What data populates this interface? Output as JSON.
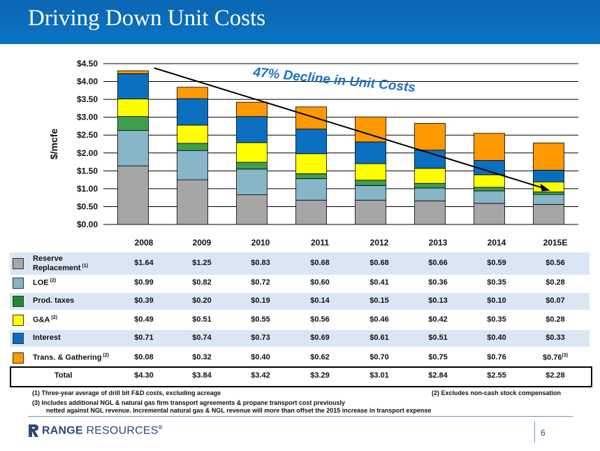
{
  "header": {
    "title": "Driving Down Unit Costs"
  },
  "chart_data": {
    "type": "bar",
    "stacked": true,
    "categories": [
      "2008",
      "2009",
      "2010",
      "2011",
      "2012",
      "2013",
      "2014",
      "2015E"
    ],
    "ylabel": "$/mcfe",
    "ylim": [
      0,
      4.5
    ],
    "yticks": [
      "$0.00",
      "$0.50",
      "$1.00",
      "$1.50",
      "$2.00",
      "$2.50",
      "$3.00",
      "$3.50",
      "$4.00",
      "$4.50"
    ],
    "grid": true,
    "series": [
      {
        "name": "Reserve Replacement",
        "color": "#a6a6a6",
        "values": [
          1.64,
          1.25,
          0.83,
          0.68,
          0.68,
          0.66,
          0.59,
          0.56
        ]
      },
      {
        "name": "LOE",
        "color": "#86b6c8",
        "values": [
          0.99,
          0.82,
          0.72,
          0.6,
          0.41,
          0.36,
          0.35,
          0.28
        ]
      },
      {
        "name": "Prod. taxes",
        "color": "#3e9e4d",
        "values": [
          0.39,
          0.2,
          0.19,
          0.14,
          0.15,
          0.13,
          0.1,
          0.07
        ]
      },
      {
        "name": "G&A",
        "color": "#ffff00",
        "values": [
          0.49,
          0.51,
          0.55,
          0.56,
          0.46,
          0.42,
          0.35,
          0.28
        ]
      },
      {
        "name": "Interest",
        "color": "#0b6fc1",
        "values": [
          0.71,
          0.74,
          0.73,
          0.69,
          0.61,
          0.51,
          0.4,
          0.33
        ]
      },
      {
        "name": "Trans. & Gathering",
        "color": "#ff9900",
        "values": [
          0.08,
          0.32,
          0.4,
          0.62,
          0.7,
          0.75,
          0.76,
          0.76
        ]
      }
    ],
    "totals": [
      4.3,
      3.84,
      3.42,
      3.29,
      3.01,
      2.84,
      2.55,
      2.28
    ],
    "annotation": "47% Decline in Unit Costs"
  },
  "table": {
    "years": [
      "2008",
      "2009",
      "2010",
      "2011",
      "2012",
      "2013",
      "2014",
      "2015E"
    ],
    "rows": [
      {
        "label": "Reserve Replacement",
        "note": "(1)",
        "color": "#a6a6a6",
        "values": [
          "$1.64",
          "$1.25",
          "$0.83",
          "$0.68",
          "$0.68",
          "$0.66",
          "$0.59",
          "$0.56"
        ]
      },
      {
        "label": "LOE",
        "note": "(2)",
        "color": "#86b6c8",
        "values": [
          "$0.99",
          "$0.82",
          "$0.72",
          "$0.60",
          "$0.41",
          "$0.36",
          "$0.35",
          "$0.28"
        ]
      },
      {
        "label": "Prod. taxes",
        "note": "",
        "color": "#1f8a2e",
        "values": [
          "$0.39",
          "$0.20",
          "$0.19",
          "$0.14",
          "$0.15",
          "$0.13",
          "$0.10",
          "$0.07"
        ]
      },
      {
        "label": "G&A",
        "note": "(2)",
        "color": "#ffff00",
        "values": [
          "$0.49",
          "$0.51",
          "$0.55",
          "$0.56",
          "$0.46",
          "$0.42",
          "$0.35",
          "$0.28"
        ]
      },
      {
        "label": "Interest",
        "note": "",
        "color": "#0b6fc1",
        "values": [
          "$0.71",
          "$0.74",
          "$0.73",
          "$0.69",
          "$0.61",
          "$0.51",
          "$0.40",
          "$0.33"
        ]
      },
      {
        "label": "Trans. & Gathering",
        "note": "(2)",
        "color": "#ff9900",
        "values": [
          "$0.08",
          "$0.32",
          "$0.40",
          "$0.62",
          "$0.70",
          "$0.75",
          "$0.76",
          "$0.76"
        ],
        "last_note": "(3)"
      }
    ],
    "total": {
      "label": "Total",
      "values": [
        "$4.30",
        "$3.84",
        "$3.42",
        "$3.29",
        "$3.01",
        "$2.84",
        "$2.55",
        "$2.28"
      ]
    }
  },
  "footnotes": {
    "note1": "(1)  Three-year average of drill bit F&D costs, excluding acreage",
    "note2": "(2)  Excludes non-cash stock compensation",
    "note3_line1": "(3)  Includes additional NGL & natural gas firm transport agreements & propane transport cost previously",
    "note3_line2": "netted against NGL revenue.  Incremental natural gas & NGL revenue will more than offset the 2015 increase in transport expense"
  },
  "footer": {
    "logo_bold": "RANGE",
    "logo_light": "RESOURCES",
    "logo_mark": "®",
    "page_number": "6"
  }
}
